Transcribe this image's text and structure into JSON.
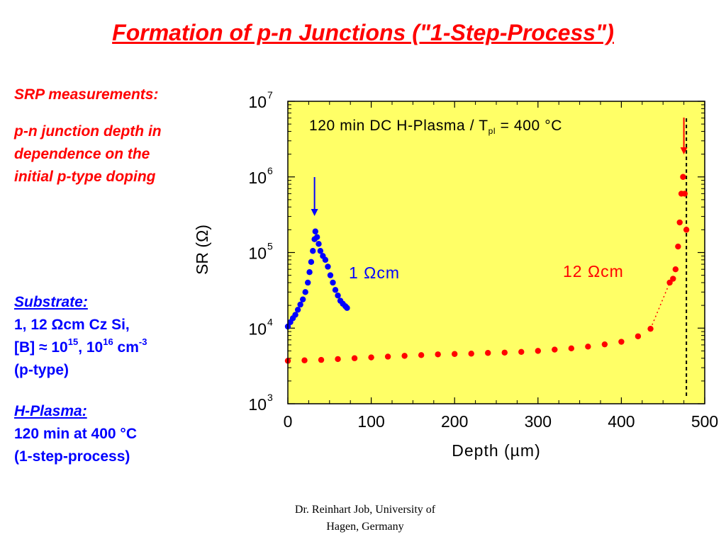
{
  "slide": {
    "title": "Formation of p-n Junctions (\"1-Step-Process\")",
    "srp_heading": "SRP measurements:",
    "srp_lines": [
      "p-n junction depth in",
      "dependence on the",
      "initial p-type doping"
    ],
    "substrate_heading": "Substrate:",
    "substrate_line1": "1, 12 Ωcm Cz Si,",
    "substrate_line2_prefix": "[B] ≈ 10",
    "substrate_exp1": "15",
    "substrate_mid": ", 10",
    "substrate_exp2": "16",
    "substrate_unit": " cm",
    "substrate_exp3": "-3",
    "substrate_line3": "(p-type)",
    "plasma_heading": "H-Plasma:",
    "plasma_line1": "120 min at 400 °C",
    "plasma_line2": "(1-step-process)",
    "footer_line1": "Dr. Reinhart Job, University of",
    "footer_line2": "Hagen, Germany"
  },
  "chart_data": {
    "type": "scatter",
    "xlabel": "Depth (µm)",
    "ylabel": "SR (Ω)",
    "xlim": [
      0,
      500
    ],
    "ylim": [
      1000,
      10000000
    ],
    "yscale": "log",
    "x_ticks": [
      "0",
      "100",
      "200",
      "300",
      "400",
      "500"
    ],
    "y_tick_base": "10",
    "y_tick_exponents": [
      "3",
      "4",
      "5",
      "6",
      "7"
    ],
    "annotation_main": "120 min DC H-Plasma / T",
    "annotation_sub": "pl",
    "annotation_tail": " = 400 °C",
    "background_color": "#ffff66",
    "junction_line_x": 478,
    "arrows": [
      {
        "x": 32,
        "color": "#0000ff"
      },
      {
        "x": 475,
        "color": "#ff0000"
      }
    ],
    "series": [
      {
        "name": "1 Ωcm",
        "color": "#0000ff",
        "points": [
          [
            0,
            10500
          ],
          [
            3,
            12000
          ],
          [
            6,
            13500
          ],
          [
            9,
            15000
          ],
          [
            12,
            17500
          ],
          [
            15,
            20500
          ],
          [
            18,
            24000
          ],
          [
            21,
            30000
          ],
          [
            24,
            40000
          ],
          [
            26,
            55000
          ],
          [
            28,
            75000
          ],
          [
            30,
            105000
          ],
          [
            32,
            150000
          ],
          [
            33,
            190000
          ],
          [
            35,
            160000
          ],
          [
            37,
            130000
          ],
          [
            39,
            105000
          ],
          [
            42,
            90000
          ],
          [
            45,
            80000
          ],
          [
            48,
            65000
          ],
          [
            51,
            50000
          ],
          [
            54,
            40000
          ],
          [
            57,
            32000
          ],
          [
            60,
            27000
          ],
          [
            63,
            23000
          ],
          [
            66,
            21000
          ],
          [
            69,
            19500
          ],
          [
            71,
            18500
          ]
        ]
      },
      {
        "name": "12 Ωcm",
        "color": "#ff0000",
        "points": [
          [
            0,
            3700
          ],
          [
            20,
            3750
          ],
          [
            40,
            3800
          ],
          [
            60,
            3900
          ],
          [
            80,
            4000
          ],
          [
            100,
            4100
          ],
          [
            120,
            4200
          ],
          [
            140,
            4300
          ],
          [
            160,
            4400
          ],
          [
            180,
            4500
          ],
          [
            200,
            4550
          ],
          [
            220,
            4600
          ],
          [
            240,
            4700
          ],
          [
            260,
            4750
          ],
          [
            280,
            4850
          ],
          [
            300,
            5000
          ],
          [
            320,
            5200
          ],
          [
            340,
            5400
          ],
          [
            360,
            5700
          ],
          [
            380,
            6100
          ],
          [
            400,
            6600
          ],
          [
            420,
            7800
          ],
          [
            435,
            9800
          ],
          [
            458,
            40000
          ],
          [
            462,
            45000
          ],
          [
            465,
            60000
          ],
          [
            468,
            120000
          ],
          [
            470,
            250000
          ],
          [
            472,
            600000
          ],
          [
            474,
            1000000
          ],
          [
            476,
            600000
          ],
          [
            478,
            200000
          ]
        ]
      }
    ]
  }
}
